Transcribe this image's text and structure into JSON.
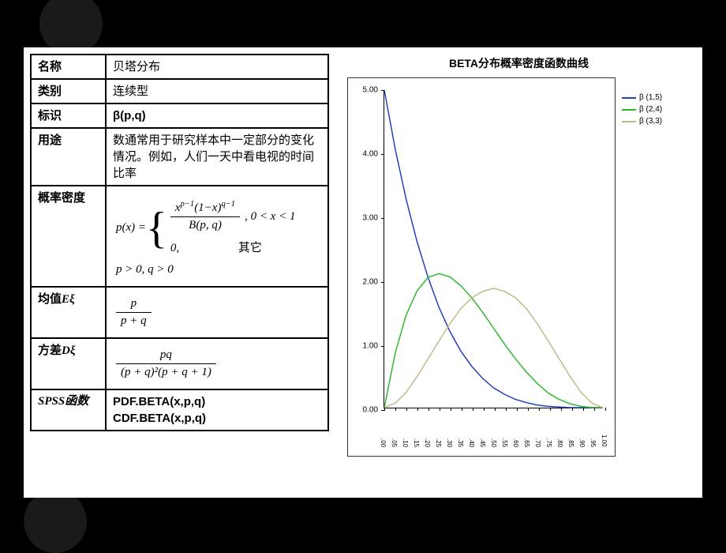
{
  "table": {
    "rows": [
      {
        "label": "名称",
        "value": "贝塔分布"
      },
      {
        "label": "类别",
        "value": "连续型"
      },
      {
        "label": "标识",
        "value": "β(p,q)",
        "bold": true
      },
      {
        "label": "用途",
        "value": "数通常用于研究样本中一定部分的变化情况。例如，人们一天中看电视的时间比率"
      }
    ],
    "density_label": "概率密度",
    "density_px": "p(x) =",
    "density_cond1": ", 0 < x < 1",
    "density_case2": "0,",
    "density_cond2": "其它",
    "density_constraint": "p > 0, q > 0",
    "frac_num_top": "x",
    "frac_exp1": "p−1",
    "frac_mid": "(1−x)",
    "frac_exp2": "q−1",
    "frac_den_top": "B(p, q)",
    "mean_label": "均值Eξ",
    "mean_num": "p",
    "mean_den": "p + q",
    "var_label": "方差Dξ",
    "var_num": "pq",
    "var_den": "(p + q)²(p + q + 1)",
    "spss_label": "SPSS函数",
    "spss_pdf": "PDF.BETA(x,p,q)",
    "spss_cdf": "CDF.BETA(x,p,q)"
  },
  "chart": {
    "title": "BETA分布概率密度函数曲线",
    "ylim": [
      0,
      5
    ],
    "yticks": [
      0.0,
      1.0,
      2.0,
      3.0,
      4.0,
      5.0
    ],
    "xlim": [
      0,
      1
    ],
    "xticks": [
      ".00",
      ".05",
      ".10",
      ".15",
      ".20",
      ".25",
      ".30",
      ".35",
      ".40",
      ".45",
      ".50",
      ".55",
      ".60",
      ".65",
      ".70",
      ".75",
      ".80",
      ".85",
      ".90",
      ".95",
      "1.00"
    ],
    "series": [
      {
        "name": "β (1,5)",
        "color": "#1f3fbf",
        "points": [
          [
            0.0,
            5.0
          ],
          [
            0.05,
            4.07
          ],
          [
            0.1,
            3.28
          ],
          [
            0.15,
            2.61
          ],
          [
            0.2,
            2.05
          ],
          [
            0.25,
            1.58
          ],
          [
            0.3,
            1.2
          ],
          [
            0.35,
            0.89
          ],
          [
            0.4,
            0.65
          ],
          [
            0.45,
            0.46
          ],
          [
            0.5,
            0.31
          ],
          [
            0.55,
            0.21
          ],
          [
            0.6,
            0.13
          ],
          [
            0.65,
            0.08
          ],
          [
            0.7,
            0.04
          ],
          [
            0.75,
            0.02
          ],
          [
            0.8,
            0.01
          ],
          [
            0.85,
            0.0
          ],
          [
            0.9,
            0.0
          ],
          [
            0.95,
            0.0
          ],
          [
            1.0,
            0.0
          ]
        ]
      },
      {
        "name": "β (2,4)",
        "color": "#2eb82e",
        "points": [
          [
            0.0,
            0.0
          ],
          [
            0.05,
            0.86
          ],
          [
            0.1,
            1.46
          ],
          [
            0.15,
            1.84
          ],
          [
            0.2,
            2.05
          ],
          [
            0.25,
            2.11
          ],
          [
            0.3,
            2.06
          ],
          [
            0.35,
            1.92
          ],
          [
            0.4,
            1.73
          ],
          [
            0.45,
            1.5
          ],
          [
            0.5,
            1.25
          ],
          [
            0.55,
            1.0
          ],
          [
            0.6,
            0.77
          ],
          [
            0.65,
            0.56
          ],
          [
            0.7,
            0.38
          ],
          [
            0.75,
            0.23
          ],
          [
            0.8,
            0.13
          ],
          [
            0.85,
            0.06
          ],
          [
            0.9,
            0.02
          ],
          [
            0.95,
            0.0
          ],
          [
            1.0,
            0.0
          ]
        ]
      },
      {
        "name": "β (3,3)",
        "color": "#c4b88a",
        "points": [
          [
            0.0,
            0.0
          ],
          [
            0.05,
            0.07
          ],
          [
            0.1,
            0.24
          ],
          [
            0.15,
            0.49
          ],
          [
            0.2,
            0.77
          ],
          [
            0.25,
            1.05
          ],
          [
            0.3,
            1.32
          ],
          [
            0.35,
            1.56
          ],
          [
            0.4,
            1.73
          ],
          [
            0.45,
            1.83
          ],
          [
            0.5,
            1.88
          ],
          [
            0.55,
            1.83
          ],
          [
            0.6,
            1.73
          ],
          [
            0.65,
            1.56
          ],
          [
            0.7,
            1.32
          ],
          [
            0.75,
            1.05
          ],
          [
            0.8,
            0.77
          ],
          [
            0.85,
            0.49
          ],
          [
            0.9,
            0.24
          ],
          [
            0.95,
            0.07
          ],
          [
            1.0,
            0.0
          ]
        ]
      }
    ]
  }
}
